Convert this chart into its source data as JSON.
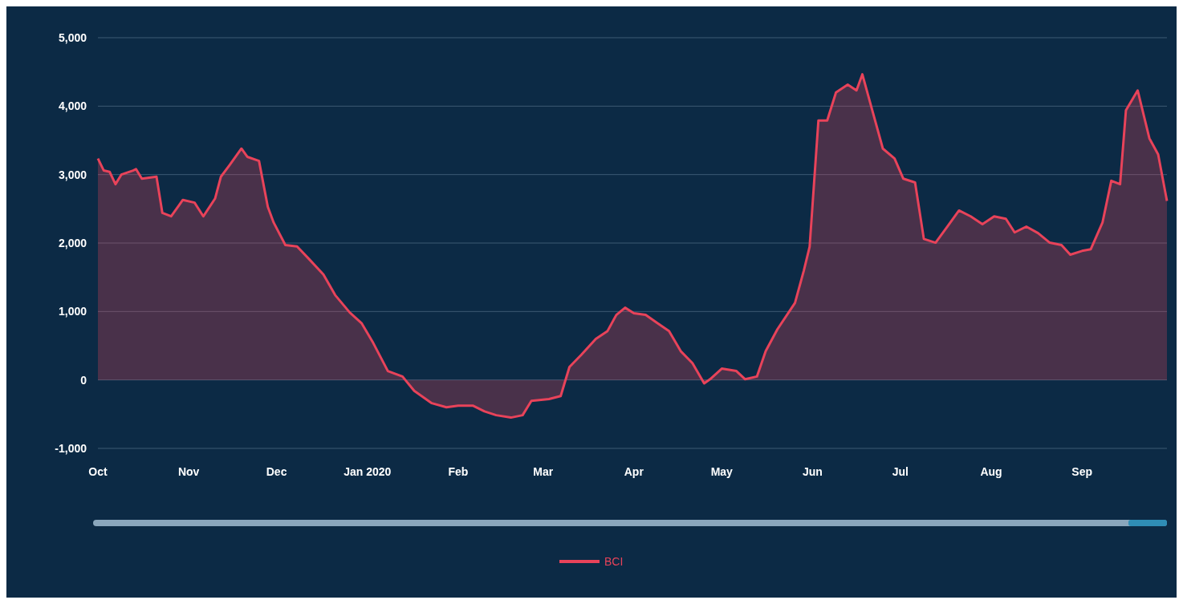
{
  "chart_data": {
    "type": "area",
    "x": [
      "2019-10-01",
      "2019-10-03",
      "2019-10-05",
      "2019-10-07",
      "2019-10-09",
      "2019-10-13",
      "2019-10-14",
      "2019-10-16",
      "2019-10-21",
      "2019-10-23",
      "2019-10-26",
      "2019-10-30",
      "2019-11-03",
      "2019-11-06",
      "2019-11-10",
      "2019-11-12",
      "2019-11-15",
      "2019-11-19",
      "2019-11-21",
      "2019-11-25",
      "2019-11-28",
      "2019-11-30",
      "2019-12-04",
      "2019-12-08",
      "2019-12-12",
      "2019-12-17",
      "2019-12-21",
      "2019-12-26",
      "2019-12-30",
      "2020-01-03",
      "2020-01-08",
      "2020-01-13",
      "2020-01-17",
      "2020-01-23",
      "2020-01-28",
      "2020-02-01",
      "2020-02-06",
      "2020-02-10",
      "2020-02-14",
      "2020-02-19",
      "2020-02-23",
      "2020-02-26",
      "2020-03-03",
      "2020-03-07",
      "2020-03-10",
      "2020-03-14",
      "2020-03-19",
      "2020-03-23",
      "2020-03-26",
      "2020-03-29",
      "2020-04-01",
      "2020-04-05",
      "2020-04-09",
      "2020-04-13",
      "2020-04-17",
      "2020-04-21",
      "2020-04-25",
      "2020-04-27",
      "2020-05-01",
      "2020-05-06",
      "2020-05-09",
      "2020-05-13",
      "2020-05-16",
      "2020-05-20",
      "2020-05-26",
      "2020-05-29",
      "2020-05-31",
      "2020-06-03",
      "2020-06-06",
      "2020-06-09",
      "2020-06-13",
      "2020-06-16",
      "2020-06-18",
      "2020-06-21",
      "2020-06-25",
      "2020-06-29",
      "2020-07-02",
      "2020-07-06",
      "2020-07-09",
      "2020-07-13",
      "2020-07-17",
      "2020-07-21",
      "2020-07-25",
      "2020-07-29",
      "2020-08-02",
      "2020-08-06",
      "2020-08-09",
      "2020-08-13",
      "2020-08-17",
      "2020-08-21",
      "2020-08-25",
      "2020-08-28",
      "2020-09-01",
      "2020-09-04",
      "2020-09-08",
      "2020-09-11",
      "2020-09-14",
      "2020-09-16",
      "2020-09-20",
      "2020-09-24",
      "2020-09-27",
      "2020-09-30"
    ],
    "series": [
      {
        "name": "BCI",
        "color": "#e8435a",
        "values": [
          3235,
          3060,
          3040,
          2860,
          3000,
          3060,
          3080,
          2940,
          2970,
          2440,
          2390,
          2630,
          2590,
          2390,
          2650,
          2970,
          3140,
          3380,
          3260,
          3200,
          2530,
          2300,
          1970,
          1950,
          1770,
          1540,
          1240,
          985,
          830,
          540,
          130,
          50,
          -160,
          -340,
          -400,
          -375,
          -375,
          -460,
          -515,
          -550,
          -515,
          -305,
          -280,
          -235,
          190,
          365,
          600,
          715,
          950,
          1055,
          975,
          950,
          830,
          715,
          420,
          245,
          -50,
          10,
          165,
          130,
          10,
          50,
          420,
          740,
          1125,
          1595,
          1945,
          3790,
          3790,
          4200,
          4315,
          4230,
          4465,
          4000,
          3380,
          3235,
          2940,
          2885,
          2060,
          2005,
          2240,
          2475,
          2390,
          2275,
          2390,
          2355,
          2155,
          2240,
          2145,
          2005,
          1970,
          1830,
          1885,
          1910,
          2300,
          2910,
          2860,
          3940,
          4230,
          3530,
          3295,
          2615
        ]
      }
    ],
    "xlim": [
      "2019-10-01",
      "2020-09-30"
    ],
    "xticks": [
      {
        "value": "2019-10-01",
        "label": "Oct"
      },
      {
        "value": "2019-11-01",
        "label": "Nov"
      },
      {
        "value": "2019-12-01",
        "label": "Dec"
      },
      {
        "value": "2020-01-01",
        "label": "Jan 2020"
      },
      {
        "value": "2020-02-01",
        "label": "Feb"
      },
      {
        "value": "2020-03-01",
        "label": "Mar"
      },
      {
        "value": "2020-04-01",
        "label": "Apr"
      },
      {
        "value": "2020-05-01",
        "label": "May"
      },
      {
        "value": "2020-06-01",
        "label": "Jun"
      },
      {
        "value": "2020-07-01",
        "label": "Jul"
      },
      {
        "value": "2020-08-01",
        "label": "Aug"
      },
      {
        "value": "2020-09-01",
        "label": "Sep"
      }
    ],
    "ylim": [
      -1000,
      5000
    ],
    "yticks": [
      {
        "value": -1000,
        "label": "-1,000"
      },
      0,
      {
        "value": 1000,
        "label": "1,000"
      },
      {
        "value": 2000,
        "label": "2,000"
      },
      {
        "value": 3000,
        "label": "3,000"
      },
      {
        "value": 4000,
        "label": "4,000"
      },
      {
        "value": 5000,
        "label": "5,000"
      }
    ],
    "grid": "y",
    "legend": "bottom"
  }
}
